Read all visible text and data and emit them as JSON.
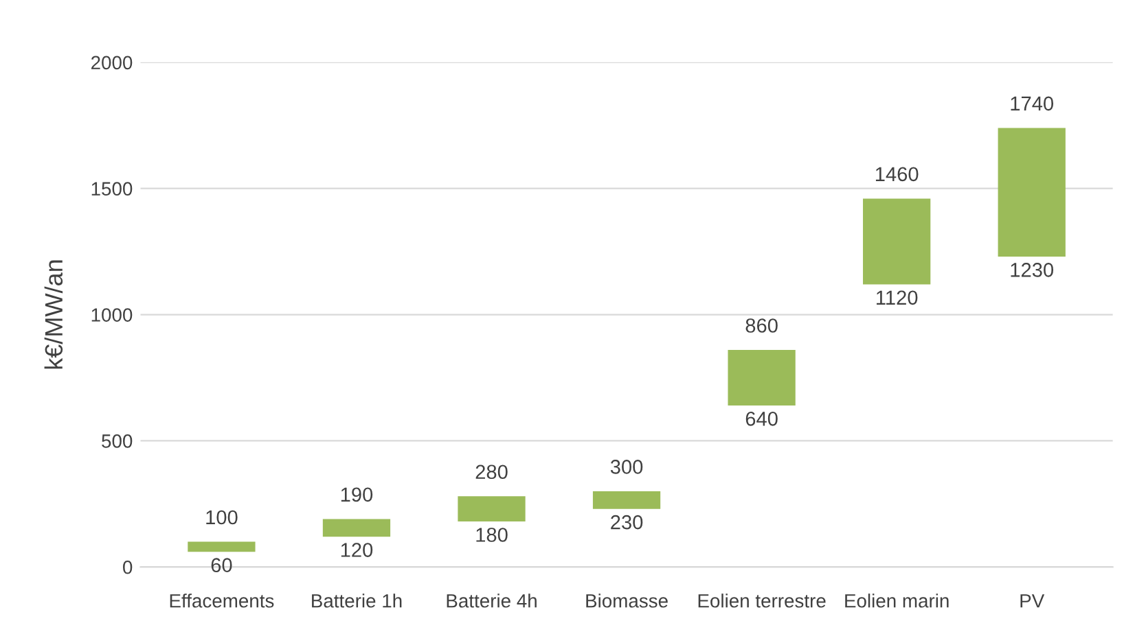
{
  "chart_data": {
    "type": "bar",
    "ylabel": "k€/MW/an",
    "categories": [
      "Effacements",
      "Batterie 1h",
      "Batterie 4h",
      "Biomasse",
      "Eolien terrestre",
      "Eolien marin",
      "PV"
    ],
    "base": [
      60,
      120,
      180,
      230,
      640,
      1120,
      1230
    ],
    "values": [
      40,
      70,
      100,
      70,
      220,
      340,
      510
    ],
    "color": "#9bbb59",
    "ylim": [
      0,
      2000
    ],
    "yticks": [
      0,
      500,
      1000,
      1500,
      2000
    ],
    "grid": "y",
    "annotations": [
      {
        "text": "100",
        "x": "Effacements",
        "y": 100
      },
      {
        "text": "60",
        "x": "Effacements",
        "y": 60
      },
      {
        "text": "190",
        "x": "Batterie 1h",
        "y": 190
      },
      {
        "text": "120",
        "x": "Batterie 1h",
        "y": 120
      },
      {
        "text": "280",
        "x": "Batterie 4h",
        "y": 280
      },
      {
        "text": "180",
        "x": "Batterie 4h",
        "y": 180
      },
      {
        "text": "300",
        "x": "Biomasse",
        "y": 300
      },
      {
        "text": "230",
        "x": "Biomasse",
        "y": 230
      },
      {
        "text": "860",
        "x": "Eolien terrestre",
        "y": 860
      },
      {
        "text": "640",
        "x": "Eolien terrestre",
        "y": 640
      },
      {
        "text": "1460",
        "x": "Eolien marin",
        "y": 1460
      },
      {
        "text": "1120",
        "x": "Eolien marin",
        "y": 1120
      },
      {
        "text": "1740",
        "x": "PV",
        "y": 1740
      },
      {
        "text": "1230",
        "x": "PV",
        "y": 1230
      }
    ]
  }
}
